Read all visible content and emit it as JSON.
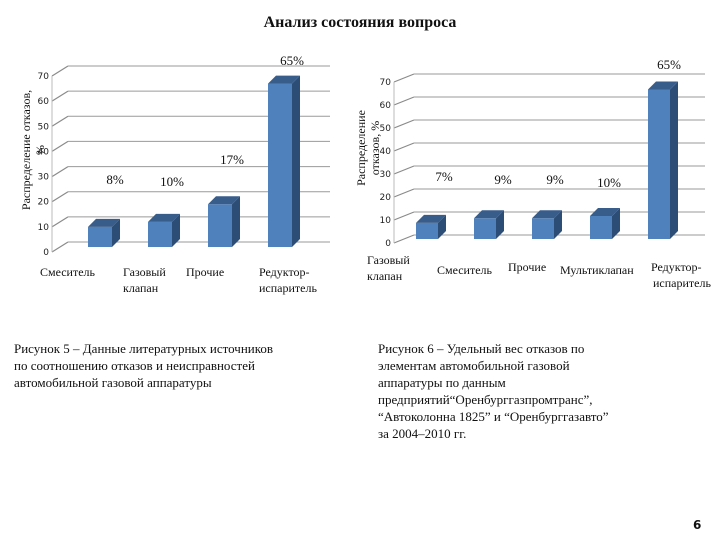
{
  "page": {
    "title": "Анализ состояния вопроса",
    "page_number": "6"
  },
  "chart_data": [
    {
      "type": "bar",
      "style": "3d-column",
      "ylabel": "Распределение отказов, %",
      "ylim": [
        0,
        70
      ],
      "yticks": [
        0,
        10,
        20,
        30,
        40,
        50,
        60,
        70
      ],
      "grid": true,
      "categories": [
        "Смеситель",
        "Газовый клапан",
        "Прочие",
        "Редуктор-испаритель"
      ],
      "values": [
        8,
        10,
        17,
        65
      ],
      "data_labels": [
        "8%",
        "10%",
        "17%",
        "65%"
      ],
      "bar_color": "#4f81bd",
      "caption": "Рисунок 5 – Данные литературных источников по соотношению отказов и неисправностей автомобильной газовой аппаратуры"
    },
    {
      "type": "bar",
      "style": "3d-column",
      "ylabel": "Распределение отказов, %",
      "ylim": [
        0,
        70
      ],
      "yticks": [
        0,
        10,
        20,
        30,
        40,
        50,
        60,
        70
      ],
      "grid": true,
      "categories": [
        "Газовый клапан",
        "Смеситель",
        "Прочие",
        "Мультиклапан",
        "Редуктор-испаритель"
      ],
      "values": [
        7,
        9,
        9,
        10,
        65
      ],
      "data_labels": [
        "7%",
        "9%",
        "9%",
        "10%",
        "65%"
      ],
      "bar_color": "#4f81bd",
      "caption": "Рисунок 6 – Удельный вес отказов по элементам автомобильной газовой аппаратуры по данным предприятий“Оренбурггазпромтранс”, “Автоколонна 1825” и “Оренбурггазавто” за 2004–2010 гг."
    }
  ],
  "chart1": {
    "ylabel_line1": "Распределение отказов,",
    "ylabel_line2": "%",
    "cats": [
      {
        "l1": "Смеситель",
        "l2": ""
      },
      {
        "l1": "Газовый",
        "l2": "клапан"
      },
      {
        "l1": "Прочие",
        "l2": ""
      },
      {
        "l1": "Редуктор-",
        "l2": "испаритель"
      }
    ],
    "caption_lines": [
      "Рисунок 5 – Данные литературных источников",
      "по соотношению отказов и неисправностей",
      "автомобильной газовой аппаратуры"
    ]
  },
  "chart2": {
    "ylabel_line1": "Распределение",
    "ylabel_line2": "отказов, %",
    "cats": [
      {
        "l1": "Газовый",
        "l2": "клапан"
      },
      {
        "l1": "Смеситель",
        "l2": ""
      },
      {
        "l1": "Прочие",
        "l2": ""
      },
      {
        "l1": "Мультиклапан",
        "l2": ""
      },
      {
        "l1": "Редуктор-",
        "l2": "испаритель"
      }
    ],
    "caption_lines": [
      "Рисунок 6 – Удельный вес отказов по",
      "элементам автомобильной газовой",
      "аппаратуры по данным",
      "предприятий“Оренбурггазпромтранс”,",
      "“Автоколонна 1825” и “Оренбурггазавто”",
      "за 2004–2010 гг."
    ]
  }
}
